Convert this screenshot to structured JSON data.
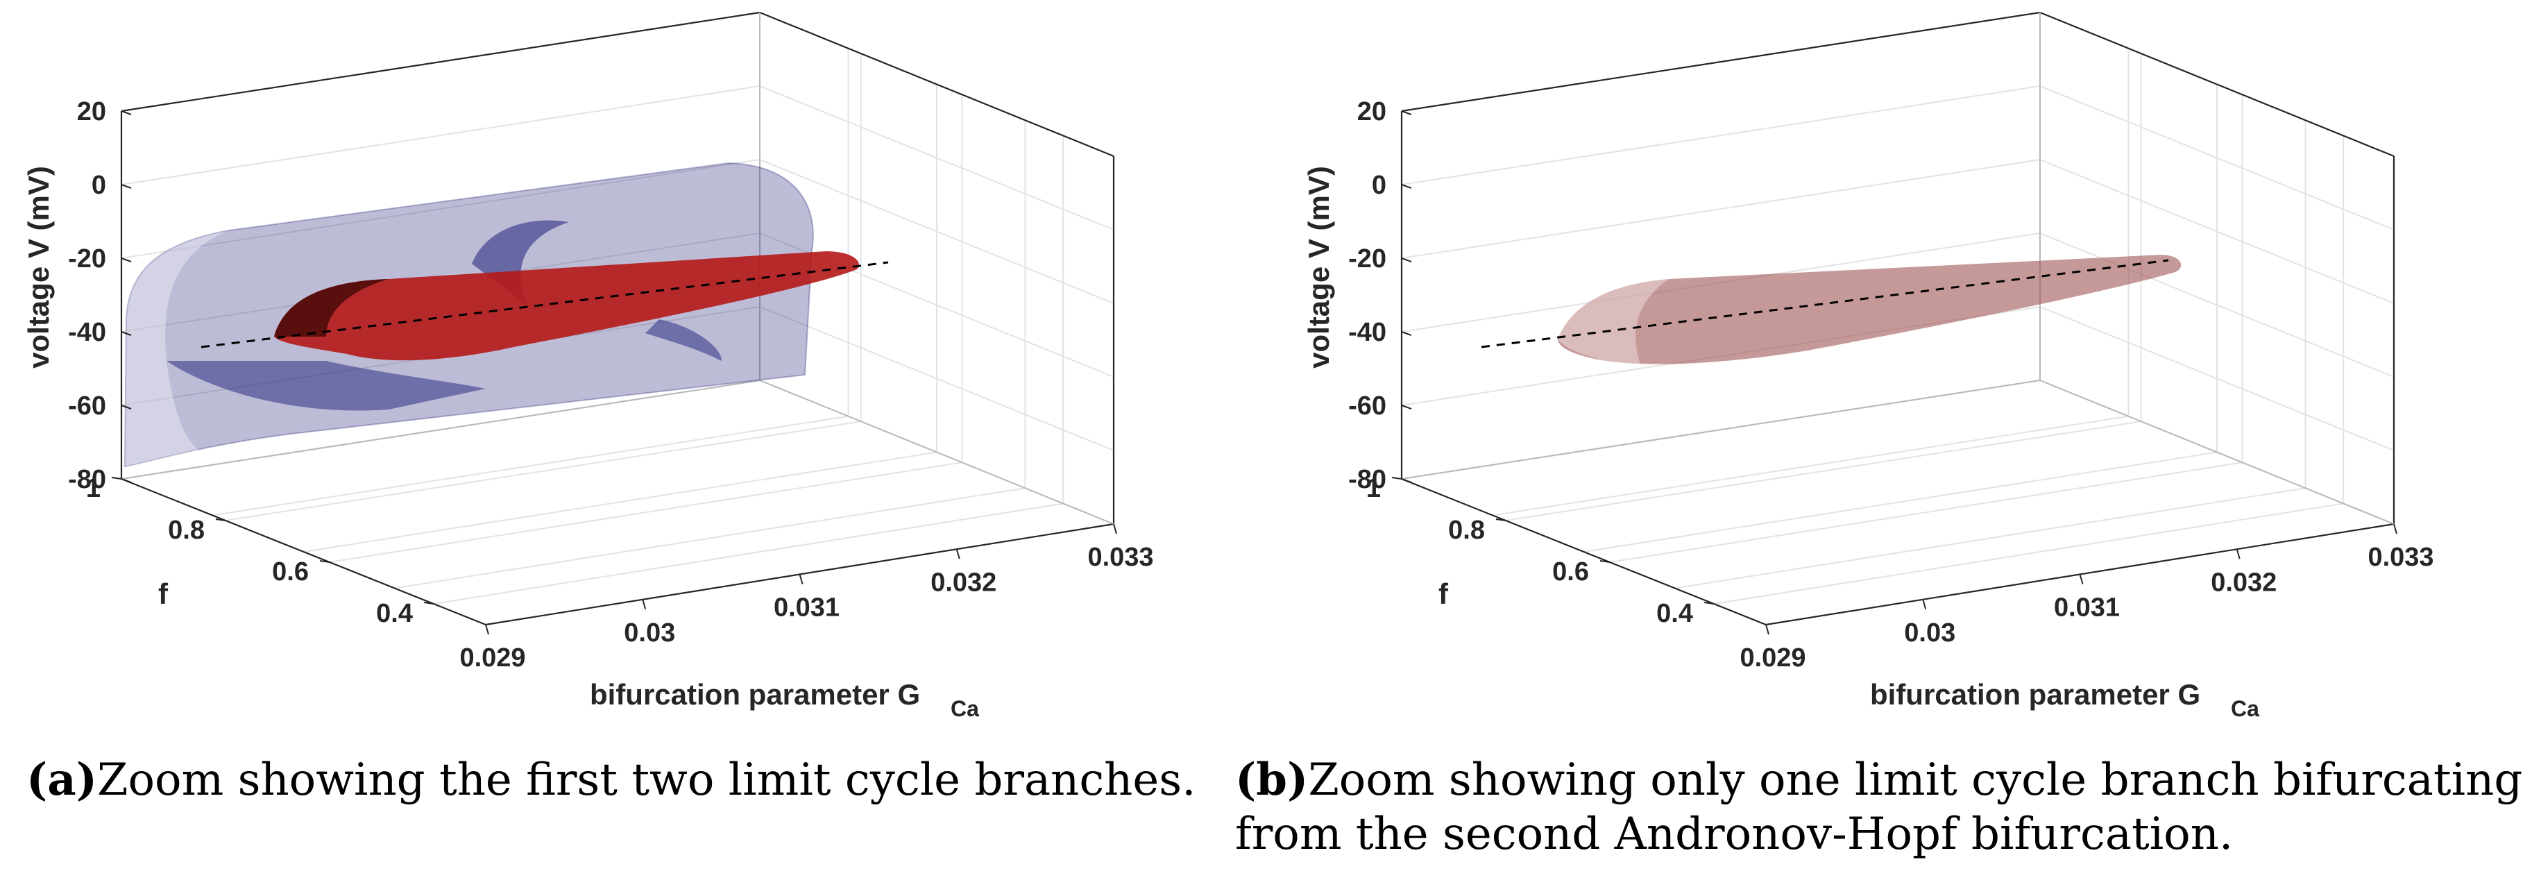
{
  "chart_data": [
    {
      "type": "3d-surface",
      "panel": "a",
      "zlabel": "voltage V (mV)",
      "ylabel": "f",
      "xlabel_main": "bifurcation parameter G",
      "xlabel_sub": "Ca",
      "z_ticks": [
        "20",
        "0",
        "-20",
        "-40",
        "-60",
        "-80"
      ],
      "y_ticks": [
        "1",
        "0.8",
        "0.6",
        "0.4"
      ],
      "x_ticks": [
        "0.029",
        "0.03",
        "0.031",
        "0.032",
        "0.033"
      ],
      "zlim": [
        -80,
        20
      ],
      "ylim": [
        0.3,
        1
      ],
      "xlim": [
        0.029,
        0.033
      ],
      "series": [
        {
          "name": "first limit cycle branch",
          "color": "#2e2e82",
          "style": "surface"
        },
        {
          "name": "second limit cycle branch",
          "color": "#b51818",
          "style": "surface"
        },
        {
          "name": "equilibrium branch",
          "color": "#000000",
          "style": "dashed"
        }
      ]
    },
    {
      "type": "3d-surface",
      "panel": "b",
      "zlabel": "voltage V (mV)",
      "ylabel": "f",
      "xlabel_main": "bifurcation parameter G",
      "xlabel_sub": "Ca",
      "z_ticks": [
        "20",
        "0",
        "-20",
        "-40",
        "-60",
        "-80"
      ],
      "y_ticks": [
        "1",
        "0.8",
        "0.6",
        "0.4"
      ],
      "x_ticks": [
        "0.029",
        "0.03",
        "0.031",
        "0.032",
        "0.033"
      ],
      "zlim": [
        -80,
        20
      ],
      "ylim": [
        0.3,
        1
      ],
      "xlim": [
        0.029,
        0.033
      ],
      "series": [
        {
          "name": "limit cycle branch",
          "color": "#a05555",
          "style": "surface"
        },
        {
          "name": "equilibrium branch",
          "color": "#000000",
          "style": "dashed"
        }
      ]
    }
  ],
  "captions": {
    "a_letter": "(a)",
    "a_text": "Zoom showing the first two limit cycle branches.",
    "b_letter": "(b)",
    "b_text": "Zoom showing only one limit cycle branch bifurcating from the second Andronov-Hopf bifurcation."
  }
}
